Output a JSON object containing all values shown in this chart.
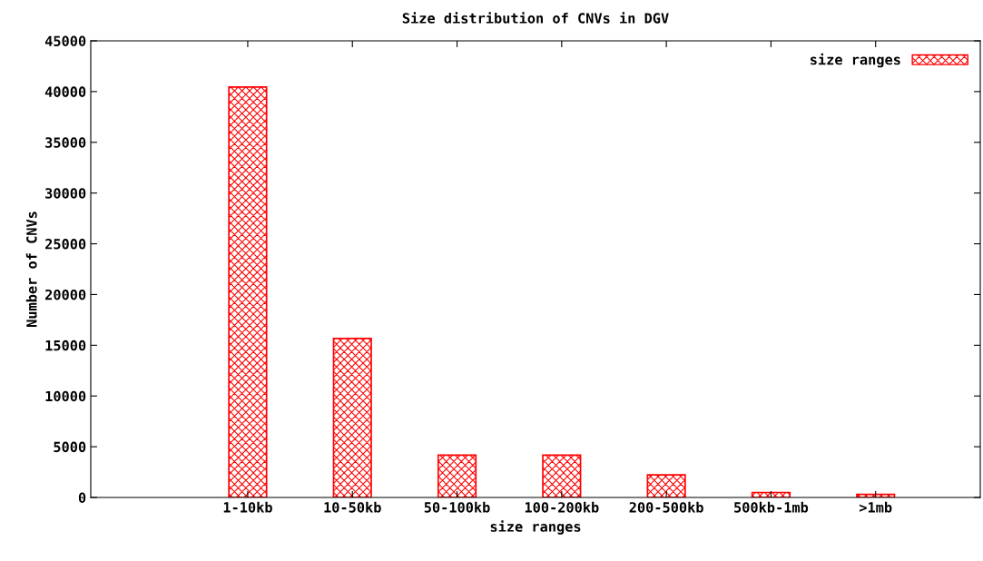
{
  "chart_data": {
    "type": "bar",
    "title": "Size distribution of CNVs in DGV",
    "xlabel": "size ranges",
    "ylabel": "Number of CNVs",
    "categories": [
      "1-10kb",
      "10-50kb",
      "50-100kb",
      "100-200kb",
      "200-500kb",
      "500kb-1mb",
      ">1mb"
    ],
    "series": [
      {
        "name": "size ranges",
        "color": "#ff0000",
        "values": [
          40450,
          15660,
          4170,
          4170,
          2230,
          490,
          300
        ]
      }
    ],
    "ylim": [
      0,
      45000
    ],
    "yticks": [
      0,
      5000,
      10000,
      15000,
      20000,
      25000,
      30000,
      35000,
      40000,
      45000
    ],
    "grid": false,
    "legend": "top right"
  }
}
